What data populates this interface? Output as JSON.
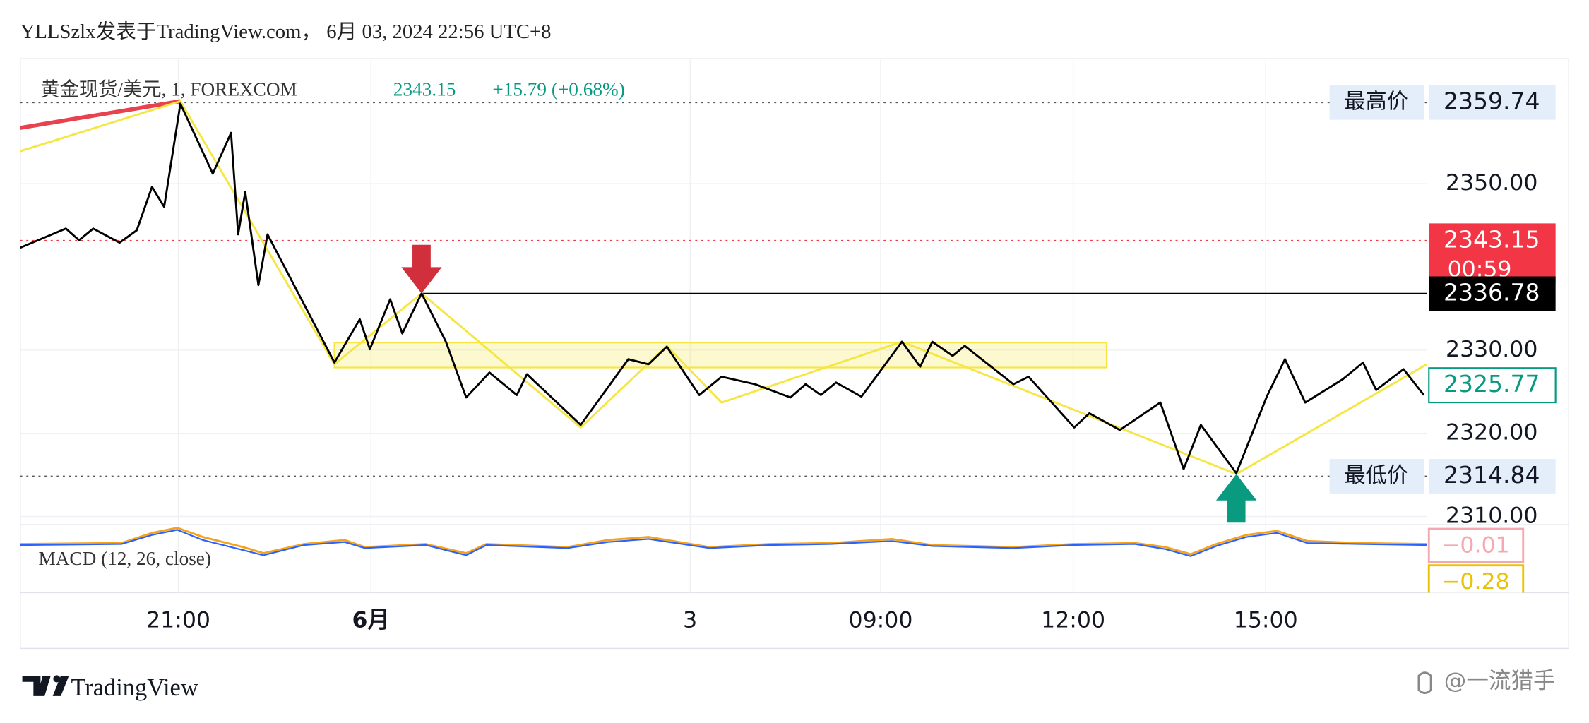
{
  "header": {
    "title": "YLLSzlx发表于TradingView.com， 6月 03, 2024 22:56 UTC+8"
  },
  "chart_data": {
    "type": "line",
    "symbol": "黄金现货/美元, 1, FOREXCOM",
    "last_price": "2343.15",
    "change": "+15.79 (+0.68%)",
    "xlim": [
      0,
      1388
    ],
    "ylim": [
      2309,
      2365
    ],
    "xticks": [
      {
        "value": 156,
        "label": "21:00"
      },
      {
        "value": 346,
        "label": "6月"
      },
      {
        "value": 661,
        "label": "3"
      },
      {
        "value": 849,
        "label": "09:00"
      },
      {
        "value": 1039,
        "label": "12:00"
      },
      {
        "value": 1229,
        "label": "15:00"
      }
    ],
    "yticks": [
      {
        "value": 2350,
        "label": "2350.00"
      },
      {
        "value": 2330,
        "label": "2330.00"
      },
      {
        "value": 2320,
        "label": "2320.00"
      },
      {
        "value": 2310,
        "label": "2310.00"
      }
    ],
    "grid": true,
    "series": [
      {
        "color": "#000000",
        "width": 2,
        "x": [
          0,
          45,
          58,
          72,
          98,
          115,
          130,
          142,
          158,
          190,
          208,
          215,
          222,
          235,
          244,
          310,
          335,
          345,
          365,
          377,
          396,
          420,
          440,
          463,
          490,
          500,
          553,
          600,
          620,
          638,
          670,
          692,
          725,
          760,
          775,
          790,
          805,
          830,
          870,
          888,
          900,
          920,
          932,
          980,
          995,
          1040,
          1055,
          1085,
          1125,
          1148,
          1165,
          1200,
          1230,
          1248,
          1268,
          1305,
          1325,
          1338,
          1365,
          1385
        ],
        "values": [
          2342.3,
          2344.6,
          2343.2,
          2344.6,
          2342.9,
          2344.4,
          2349.6,
          2347.2,
          2359.6,
          2351.2,
          2356.1,
          2343.9,
          2349.0,
          2337.8,
          2343.9,
          2328.5,
          2333.7,
          2330.1,
          2336.1,
          2332.0,
          2336.8,
          2331.0,
          2324.3,
          2327.3,
          2324.6,
          2327.1,
          2321.0,
          2328.9,
          2328.3,
          2330.4,
          2324.6,
          2326.8,
          2325.9,
          2324.3,
          2325.9,
          2324.6,
          2326.1,
          2324.4,
          2331.0,
          2328.0,
          2331.0,
          2329.3,
          2330.5,
          2325.9,
          2326.8,
          2320.7,
          2322.4,
          2320.4,
          2323.7,
          2315.7,
          2321.0,
          2315.2,
          2324.4,
          2328.9,
          2323.7,
          2326.5,
          2328.5,
          2325.2,
          2327.7,
          2324.6
        ]
      },
      {
        "color": "#f5e642",
        "width": 2,
        "x": [
          0,
          158,
          310,
          396,
          553,
          638,
          692,
          870,
          1200,
          1388
        ],
        "values": [
          2353.9,
          2359.9,
          2328.3,
          2336.8,
          2320.7,
          2330.5,
          2323.7,
          2331.0,
          2315.1,
          2328.3
        ]
      },
      {
        "color": "#e8424f",
        "width": 4,
        "x": [
          0,
          158
        ],
        "values": [
          2356.7,
          2359.9
        ]
      }
    ],
    "zone": {
      "x": [
        310,
        1072
      ],
      "y": [
        2327.9,
        2330.9
      ],
      "color": "#f5e642"
    },
    "levels": [
      {
        "label": "最高价",
        "value": 2359.74,
        "value_label": "2359.74",
        "line": "dotted",
        "box": "plain",
        "color": "#555555"
      },
      {
        "value": 2343.15,
        "value_label": "2343.15",
        "countdown": "00:59",
        "line": "dotted",
        "box": "filled",
        "color": "#f23645"
      },
      {
        "value": 2336.78,
        "value_label": "2336.78",
        "line": "solid",
        "box": "filled",
        "color": "#000000",
        "x_start": 396
      },
      {
        "value": 2325.77,
        "value_label": "2325.77",
        "box": "outline",
        "color": "#089981"
      },
      {
        "label": "最低价",
        "value": 2314.84,
        "value_label": "2314.84",
        "line": "dotted",
        "box": "plain",
        "color": "#555555"
      }
    ],
    "arrows": [
      {
        "x": 396,
        "y": 2336.8,
        "direction": "down",
        "color": "#d12f3c"
      },
      {
        "x": 1200,
        "y": 2315.1,
        "direction": "up",
        "color": "#0a9a80"
      }
    ],
    "macd": {
      "label": "MACD (12, 26, close)",
      "values": [
        -0.01,
        -0.28
      ],
      "value_labels": [
        "−0.01",
        "−0.28"
      ],
      "colors": [
        "#f5a8b0",
        "#e8c400"
      ]
    }
  },
  "footer": {
    "brand": "TradingView",
    "watermark": "@一流猎手"
  }
}
